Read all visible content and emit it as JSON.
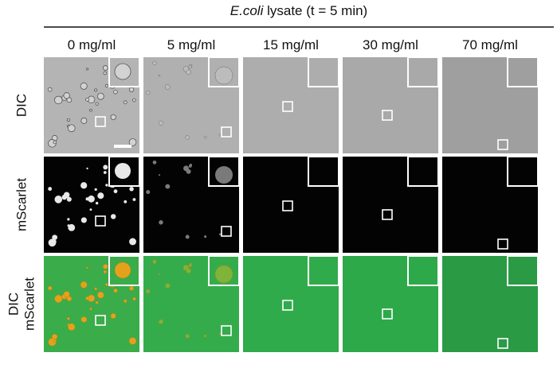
{
  "header": {
    "title_italic": "E.coli",
    "title_rest": "lysate (t = 5 min)"
  },
  "columns": [
    "0 mg/ml",
    "5 mg/ml",
    "15 mg/ml",
    "30 mg/ml",
    "70 mg/ml"
  ],
  "rows": [
    {
      "lines": [
        "DIC"
      ]
    },
    {
      "lines": [
        "mScarlet"
      ]
    },
    {
      "lines": [
        "DIC",
        "mScarlet"
      ]
    }
  ]
}
